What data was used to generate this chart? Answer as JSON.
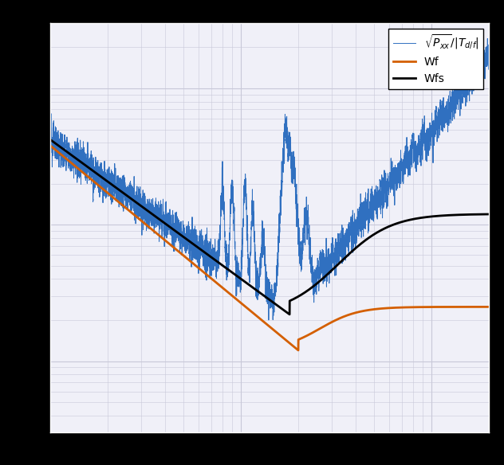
{
  "background_color": "#ffffff",
  "axes_bg_color": "#f0f0f8",
  "grid_color": "#c8c8d8",
  "blue_color": "#3070c0",
  "orange_color": "#d45f00",
  "black_color": "#000000",
  "outer_bg": "#000000",
  "legend_labels": [
    "$\\sqrt{P_{xx}}/|T_{d/f}|$",
    "Wf",
    "Wfs"
  ],
  "xlim": [
    1,
    200
  ],
  "ylim": [
    0.0003,
    0.3
  ],
  "figsize": [
    6.32,
    5.84
  ],
  "dpi": 100
}
